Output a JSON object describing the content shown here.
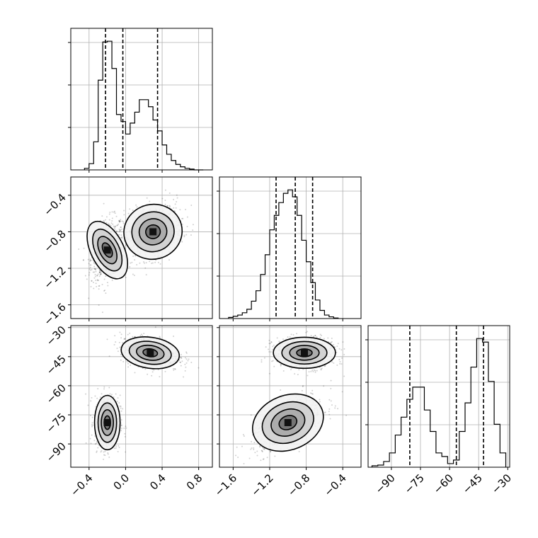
{
  "chart_data": {
    "type": "corner",
    "parameters": [
      {
        "range": [
          -0.6,
          0.95
        ],
        "ticks": [
          -0.4,
          0.0,
          0.4,
          0.8
        ],
        "tick_labels": [
          "−0.4",
          "0.0",
          "0.4",
          "0.8"
        ],
        "quantiles": [
          -0.22,
          -0.03,
          0.35
        ],
        "histogram": {
          "bins": [
            -0.45,
            -0.4,
            -0.35,
            -0.3,
            -0.25,
            -0.2,
            -0.15,
            -0.1,
            -0.05,
            0.0,
            0.05,
            0.1,
            0.15,
            0.2,
            0.25,
            0.3,
            0.35,
            0.4,
            0.45,
            0.5,
            0.55,
            0.6,
            0.65,
            0.7,
            0.75,
            0.8,
            0.85
          ],
          "counts": [
            2,
            8,
            36,
            115,
            164,
            165,
            130,
            71,
            62,
            46,
            60,
            74,
            90,
            90,
            81,
            64,
            50,
            32,
            20,
            12,
            7,
            4,
            2,
            1,
            0,
            0
          ]
        }
      },
      {
        "range": [
          -1.75,
          -0.2
        ],
        "ticks": [
          -1.6,
          -1.2,
          -0.8,
          -0.4
        ],
        "tick_labels": [
          "−1.6",
          "−1.2",
          "−0.8",
          "−0.4"
        ],
        "quantiles": [
          -1.13,
          -0.92,
          -0.73
        ],
        "histogram": {
          "bins": [
            -1.65,
            -1.6,
            -1.55,
            -1.5,
            -1.45,
            -1.4,
            -1.35,
            -1.3,
            -1.25,
            -1.2,
            -1.15,
            -1.1,
            -1.05,
            -1.0,
            -0.95,
            -0.9,
            -0.85,
            -0.8,
            -0.75,
            -0.7,
            -0.65,
            -0.6,
            -0.55,
            -0.5,
            -0.45
          ],
          "counts": [
            2,
            4,
            6,
            10,
            16,
            30,
            48,
            76,
            110,
            153,
            178,
            200,
            216,
            222,
            210,
            178,
            135,
            98,
            62,
            32,
            14,
            6,
            3,
            1
          ]
        }
      },
      {
        "range": [
          -102,
          -29
        ],
        "ticks": [
          -90,
          -75,
          -60,
          -45,
          -30
        ],
        "tick_labels": [
          "−90",
          "−75",
          "−60",
          "−45",
          "−30"
        ],
        "quantiles": [
          -80.5,
          -56.5,
          -42.5
        ],
        "histogram": {
          "bins": [
            -100,
            -97,
            -94,
            -91,
            -88,
            -85,
            -82,
            -79,
            -76,
            -73,
            -70,
            -67,
            -64,
            -61,
            -58,
            -55,
            -52,
            -49,
            -46,
            -43,
            -40,
            -37,
            -34,
            -31
          ],
          "counts": [
            2,
            3,
            8,
            20,
            45,
            70,
            95,
            112,
            112,
            80,
            50,
            20,
            15,
            5,
            10,
            50,
            90,
            140,
            180,
            175,
            120,
            60,
            20
          ]
        }
      }
    ],
    "pairs": [
      {
        "x_param": 0,
        "y_param": 1,
        "clusters": [
          {
            "x": -0.2,
            "y": -1.0,
            "sx": 0.09,
            "sy": 0.17,
            "rho": 0.3,
            "weight": 0.55
          },
          {
            "x": 0.3,
            "y": -0.8,
            "sx": 0.16,
            "sy": 0.15,
            "rho": 0.3,
            "weight": 0.45
          }
        ]
      },
      {
        "x_param": 0,
        "y_param": 2,
        "clusters": [
          {
            "x": -0.2,
            "y": -79,
            "sx": 0.07,
            "sy": 7,
            "rho": 0.0,
            "weight": 0.45
          },
          {
            "x": 0.27,
            "y": -43,
            "sx": 0.16,
            "sy": 4,
            "rho": -0.3,
            "weight": 0.55
          }
        ]
      },
      {
        "x_param": 1,
        "y_param": 2,
        "clusters": [
          {
            "x": -1.0,
            "y": -79,
            "sx": 0.2,
            "sy": 7,
            "rho": 0.6,
            "weight": 0.45
          },
          {
            "x": -0.82,
            "y": -43,
            "sx": 0.17,
            "sy": 4,
            "rho": 0.0,
            "weight": 0.55
          }
        ]
      }
    ],
    "grid": true,
    "quantile_line_style": "dashed"
  }
}
